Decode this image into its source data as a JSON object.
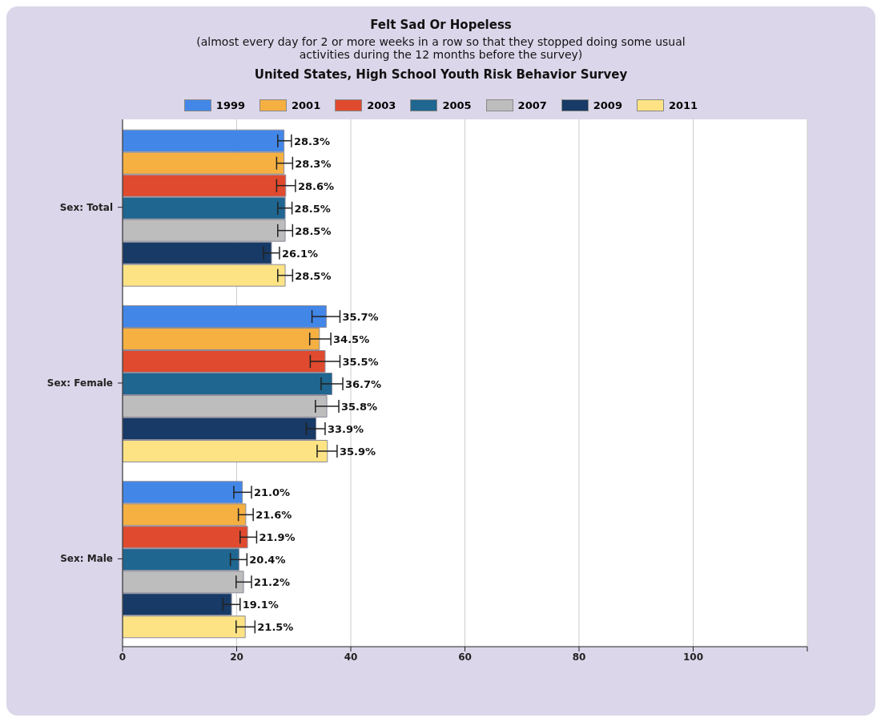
{
  "chart_data": {
    "type": "bar",
    "orientation": "horizontal",
    "title": "Felt Sad Or Hopeless",
    "subtitle": "(almost every day for 2 or more weeks in a row so that they stopped doing some usual activities during the 12 months before the survey)",
    "annotations": [
      "United States, High School Youth Risk Behavior Survey"
    ],
    "categories": [
      "Sex: Total",
      "Sex: Female",
      "Sex: Male"
    ],
    "series": [
      {
        "name": "1999",
        "color": "#4287e8",
        "values": [
          28.3,
          35.7,
          21.0
        ],
        "errors": [
          [
            27.2,
            29.6
          ],
          [
            33.2,
            38.1
          ],
          [
            19.5,
            22.6
          ]
        ],
        "value_labels": [
          "28.3%",
          "35.7%",
          "21.0%"
        ]
      },
      {
        "name": "2001",
        "color": "#f5b041",
        "values": [
          28.3,
          34.5,
          21.6
        ],
        "errors": [
          [
            27.0,
            29.8
          ],
          [
            32.8,
            36.5
          ],
          [
            20.3,
            22.9
          ]
        ],
        "value_labels": [
          "28.3%",
          "34.5%",
          "21.6%"
        ]
      },
      {
        "name": "2003",
        "color": "#e04a2e",
        "values": [
          28.6,
          35.5,
          21.9
        ],
        "errors": [
          [
            27.0,
            30.3
          ],
          [
            32.9,
            38.1
          ],
          [
            20.6,
            23.5
          ]
        ],
        "value_labels": [
          "28.6%",
          "35.5%",
          "21.9%"
        ]
      },
      {
        "name": "2005",
        "color": "#1f6690",
        "values": [
          28.5,
          36.7,
          20.4
        ],
        "errors": [
          [
            27.2,
            29.7
          ],
          [
            34.8,
            38.6
          ],
          [
            18.9,
            21.8
          ]
        ],
        "value_labels": [
          "28.5%",
          "36.7%",
          "20.4%"
        ]
      },
      {
        "name": "2007",
        "color": "#bdbdbd",
        "values": [
          28.5,
          35.8,
          21.2
        ],
        "errors": [
          [
            27.2,
            29.8
          ],
          [
            33.8,
            37.9
          ],
          [
            19.9,
            22.6
          ]
        ],
        "value_labels": [
          "28.5%",
          "35.8%",
          "21.2%"
        ]
      },
      {
        "name": "2009",
        "color": "#173a66",
        "values": [
          26.1,
          33.9,
          19.1
        ],
        "errors": [
          [
            24.7,
            27.5
          ],
          [
            32.2,
            35.5
          ],
          [
            17.6,
            20.6
          ]
        ],
        "value_labels": [
          "26.1%",
          "33.9%",
          "19.1%"
        ]
      },
      {
        "name": "2011",
        "color": "#fde384",
        "values": [
          28.5,
          35.9,
          21.5
        ],
        "errors": [
          [
            27.2,
            29.8
          ],
          [
            34.1,
            37.6
          ],
          [
            19.9,
            23.2
          ]
        ],
        "value_labels": [
          "28.5%",
          "35.9%",
          "21.5%"
        ]
      }
    ],
    "xlim": [
      0,
      120
    ],
    "xticks": [
      0,
      20,
      40,
      60,
      80,
      100,
      {
        "value": 120,
        "label": null
      }
    ],
    "grid": "x",
    "legend": "top"
  }
}
